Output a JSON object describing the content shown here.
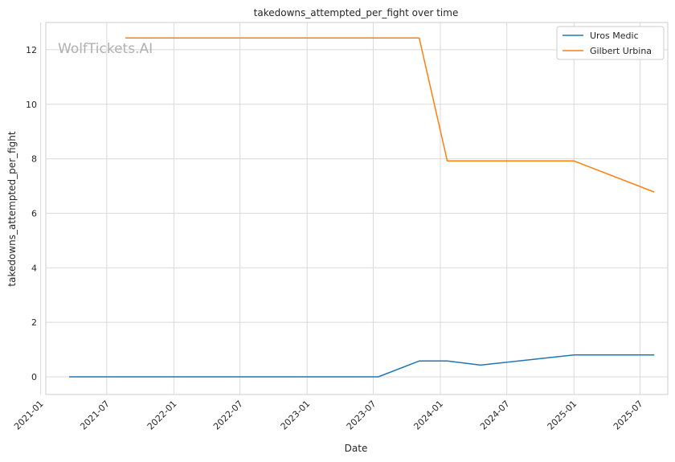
{
  "chart_data": {
    "type": "line",
    "title": "takedowns_attempted_per_fight over time",
    "xlabel": "Date",
    "ylabel": "takedowns_attempted_per_fight",
    "watermark": "WolfTickets.AI",
    "xlim": [
      "2021-01-15",
      "2025-09-15"
    ],
    "ylim": [
      -0.65,
      13.0
    ],
    "x_ticks": [
      "2021-01",
      "2021-07",
      "2022-01",
      "2022-07",
      "2023-01",
      "2023-07",
      "2024-01",
      "2024-07",
      "2025-01",
      "2025-07"
    ],
    "y_ticks": [
      0,
      2,
      4,
      6,
      8,
      10,
      12
    ],
    "grid": true,
    "legend": "top-right",
    "series": [
      {
        "name": "Uros Medic",
        "color": "#1f77b4",
        "points": [
          {
            "x": "2021-03-20",
            "y": 0.0
          },
          {
            "x": "2023-07-15",
            "y": 0.0
          },
          {
            "x": "2023-11-04",
            "y": 0.58
          },
          {
            "x": "2024-01-20",
            "y": 0.58
          },
          {
            "x": "2024-04-20",
            "y": 0.43
          },
          {
            "x": "2025-01-01",
            "y": 0.8
          },
          {
            "x": "2025-08-09",
            "y": 0.8
          }
        ]
      },
      {
        "name": "Gilbert Urbina",
        "color": "#ff7f0e",
        "points": [
          {
            "x": "2021-08-21",
            "y": 12.43
          },
          {
            "x": "2023-11-04",
            "y": 12.43
          },
          {
            "x": "2024-01-20",
            "y": 7.92
          },
          {
            "x": "2025-01-01",
            "y": 7.92
          },
          {
            "x": "2025-08-09",
            "y": 6.78
          }
        ]
      }
    ]
  }
}
